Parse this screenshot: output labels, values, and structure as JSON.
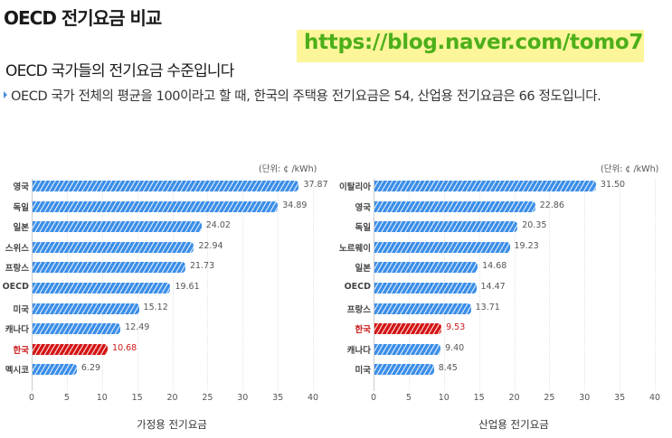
{
  "header": {
    "title": "OECD 전기요금 비교",
    "url": "https://blog.naver.com/tomo7",
    "subtitle": "OECD 국가들의 전기요금 수준입니다",
    "description": "OECD 국가 전체의 평균을 100이라고 할 때, 한국의 주택용 전기요금은 54, 산업용 전기요금은 66 정도입니다."
  },
  "colors": {
    "bar": "#3a8ee8",
    "highlight": "#d41414",
    "url_text": "#4caf1a",
    "url_background": "#fcf59a"
  },
  "chart_data": [
    {
      "type": "bar",
      "orientation": "horizontal",
      "title": "가정용 전기요금",
      "xlabel": "가정용 전기요금",
      "unit": "(단위: ¢ /kWh)",
      "categories": [
        "영국",
        "독일",
        "일본",
        "스위스",
        "프랑스",
        "OECD",
        "미국",
        "캐나다",
        "한국",
        "멕시코"
      ],
      "values": [
        37.87,
        34.89,
        24.02,
        22.94,
        21.73,
        19.61,
        15.12,
        12.49,
        10.68,
        6.29
      ],
      "value_labels": [
        "37.87",
        "34.89",
        "24.02",
        "22.94",
        "21.73",
        "19.61",
        "15.12",
        "12.49",
        "10.68",
        "6.29"
      ],
      "highlight": "한국",
      "xlim": [
        0,
        40
      ],
      "xticks": [
        "0",
        "5",
        "10",
        "15",
        "20",
        "25",
        "30",
        "35",
        "40"
      ],
      "grid": true
    },
    {
      "type": "bar",
      "orientation": "horizontal",
      "title": "산업용 전기요금",
      "xlabel": "산업용 전기요금",
      "unit": "(단위: ¢ /kWh)",
      "categories": [
        "이탈리아",
        "영국",
        "독일",
        "노르웨이",
        "일본",
        "OECD",
        "프랑스",
        "한국",
        "캐나다",
        "미국"
      ],
      "values": [
        31.5,
        22.86,
        20.35,
        19.23,
        14.68,
        14.47,
        13.71,
        9.53,
        9.4,
        8.45
      ],
      "value_labels": [
        "31.50",
        "22.86",
        "20.35",
        "19.23",
        "14.68",
        "14.47",
        "13.71",
        "9.53",
        "9.40",
        "8.45"
      ],
      "highlight": "한국",
      "xlim": [
        0,
        40
      ],
      "xticks": [
        "0",
        "5",
        "10",
        "15",
        "20",
        "25",
        "30",
        "35",
        "40"
      ],
      "grid": true
    }
  ]
}
